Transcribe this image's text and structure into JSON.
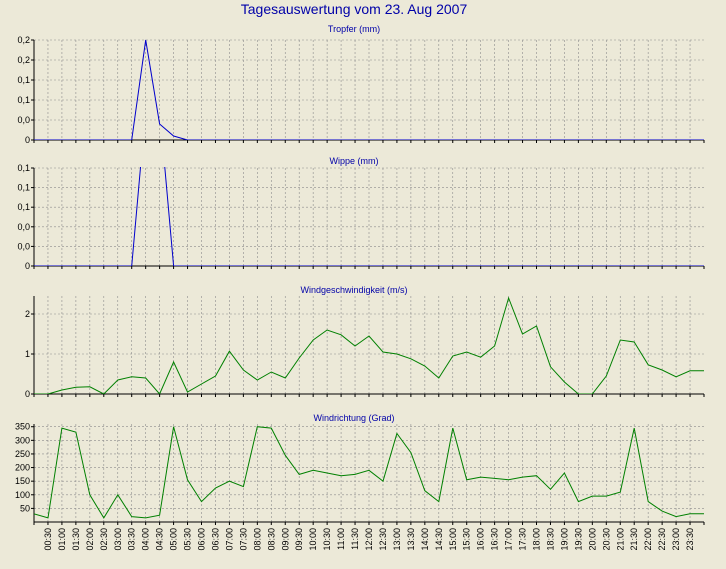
{
  "title": "Tagesauswertung vom 23. Aug 2007",
  "colors": {
    "background": "#ece9d8",
    "plot_bg": "#ece9d8",
    "grid": "#8c8c8c",
    "text_title": "#0000a8",
    "series_blue": "#0000cc",
    "series_green": "#008000"
  },
  "x_labels": [
    "00:30",
    "01:00",
    "01:30",
    "02:00",
    "02:30",
    "03:00",
    "03:30",
    "04:00",
    "04:30",
    "05:00",
    "05:30",
    "06:00",
    "06:30",
    "07:00",
    "07:30",
    "08:00",
    "08:30",
    "09:00",
    "09:30",
    "10:00",
    "10:30",
    "11:00",
    "11:30",
    "12:00",
    "12:30",
    "13:00",
    "13:30",
    "14:00",
    "14:30",
    "15:00",
    "15:30",
    "16:00",
    "16:30",
    "17:00",
    "17:30",
    "18:00",
    "18:30",
    "19:00",
    "19:30",
    "20:00",
    "20:30",
    "21:00",
    "21:30",
    "22:00",
    "22:30",
    "23:00",
    "23:30"
  ],
  "chart_data": [
    {
      "type": "line",
      "title": "Tropfer (mm)",
      "x": [
        "00:00",
        "00:30",
        "01:00",
        "01:30",
        "02:00",
        "02:30",
        "03:00",
        "03:30",
        "04:00",
        "04:30",
        "05:00",
        "05:30",
        "06:00",
        "06:30",
        "07:00",
        "07:30",
        "08:00",
        "08:30",
        "09:00",
        "09:30",
        "10:00",
        "10:30",
        "11:00",
        "11:30",
        "12:00",
        "12:30",
        "13:00",
        "13:30",
        "14:00",
        "14:30",
        "15:00",
        "15:30",
        "16:00",
        "16:30",
        "17:00",
        "17:30",
        "18:00",
        "18:30",
        "19:00",
        "19:30",
        "20:00",
        "20:30",
        "21:00",
        "21:30",
        "22:00",
        "22:30",
        "23:00",
        "23:30",
        "24:00"
      ],
      "values": [
        0,
        0,
        0,
        0,
        0,
        0,
        0,
        0,
        0.25,
        0.04,
        0.01,
        0,
        0,
        0,
        0,
        0,
        0,
        0,
        0,
        0,
        0,
        0,
        0,
        0,
        0,
        0,
        0,
        0,
        0,
        0,
        0,
        0,
        0,
        0,
        0,
        0,
        0,
        0,
        0,
        0,
        0,
        0,
        0,
        0,
        0,
        0,
        0,
        0,
        0
      ],
      "yticks": [
        0,
        0.05,
        0.1,
        0.15,
        0.2,
        0.25
      ],
      "ytick_labels": [
        "0",
        "0,0",
        "0,1",
        "0,1",
        "0,2",
        "0,2"
      ],
      "ylim": [
        0,
        0.25
      ],
      "grid": true,
      "color": "#0000cc"
    },
    {
      "type": "line",
      "title": "Wippe (mm)",
      "x": [
        "00:00",
        "00:30",
        "01:00",
        "01:30",
        "02:00",
        "02:30",
        "03:00",
        "03:30",
        "04:00",
        "04:30",
        "05:00",
        "05:30",
        "06:00",
        "06:30",
        "07:00",
        "07:30",
        "08:00",
        "08:30",
        "09:00",
        "09:30",
        "10:00",
        "10:30",
        "11:00",
        "11:30",
        "12:00",
        "12:30",
        "13:00",
        "13:30",
        "14:00",
        "14:30",
        "15:00",
        "15:30",
        "16:00",
        "16:30",
        "17:00",
        "17:30",
        "18:00",
        "18:30",
        "19:00",
        "19:30",
        "20:00",
        "20:30",
        "21:00",
        "21:30",
        "22:00",
        "22:30",
        "23:00",
        "23:30",
        "24:00"
      ],
      "values": [
        0,
        0,
        0,
        0,
        0,
        0,
        0,
        0,
        0.2,
        0.2,
        0,
        0,
        0,
        0,
        0,
        0,
        0,
        0,
        0,
        0,
        0,
        0,
        0,
        0,
        0,
        0,
        0,
        0,
        0,
        0,
        0,
        0,
        0,
        0,
        0,
        0,
        0,
        0,
        0,
        0,
        0,
        0,
        0,
        0,
        0,
        0,
        0,
        0,
        0
      ],
      "yticks": [
        0,
        0.025,
        0.05,
        0.075,
        0.1,
        0.125
      ],
      "ytick_labels": [
        "0",
        "0,0",
        "0,0",
        "0,1",
        "0,1",
        "0,1"
      ],
      "ylim": [
        0,
        0.125
      ],
      "grid": true,
      "color": "#0000cc"
    },
    {
      "type": "line",
      "title": "Windgeschwindigkeit (m/s)",
      "x": [
        "00:00",
        "00:30",
        "01:00",
        "01:30",
        "02:00",
        "02:30",
        "03:00",
        "03:30",
        "04:00",
        "04:30",
        "05:00",
        "05:30",
        "06:00",
        "06:30",
        "07:00",
        "07:30",
        "08:00",
        "08:30",
        "09:00",
        "09:30",
        "10:00",
        "10:30",
        "11:00",
        "11:30",
        "12:00",
        "12:30",
        "13:00",
        "13:30",
        "14:00",
        "14:30",
        "15:00",
        "15:30",
        "16:00",
        "16:30",
        "17:00",
        "17:30",
        "18:00",
        "18:30",
        "19:00",
        "19:30",
        "20:00",
        "20:30",
        "21:00",
        "21:30",
        "22:00",
        "22:30",
        "23:00",
        "23:30",
        "24:00"
      ],
      "values": [
        0,
        0,
        0.1,
        0.17,
        0.18,
        0,
        0.35,
        0.43,
        0.4,
        0,
        0.8,
        0.05,
        0.25,
        0.45,
        1.07,
        0.6,
        0.35,
        0.55,
        0.4,
        0.9,
        1.35,
        1.6,
        1.48,
        1.2,
        1.45,
        1.05,
        1.0,
        0.88,
        0.7,
        0.4,
        0.95,
        1.05,
        0.92,
        1.2,
        2.4,
        1.5,
        1.7,
        0.68,
        0.3,
        0,
        0,
        0.45,
        1.35,
        1.3,
        0.73,
        0.6,
        0.43,
        0.58,
        0.58
      ],
      "yticks": [
        0,
        1,
        2
      ],
      "ytick_labels": [
        "0",
        "1",
        "2"
      ],
      "ylim": [
        0,
        2.45
      ],
      "grid": true,
      "color": "#008000"
    },
    {
      "type": "line",
      "title": "Windrichtung (Grad)",
      "x": [
        "00:00",
        "00:30",
        "01:00",
        "01:30",
        "02:00",
        "02:30",
        "03:00",
        "03:30",
        "04:00",
        "04:30",
        "05:00",
        "05:30",
        "06:00",
        "06:30",
        "07:00",
        "07:30",
        "08:00",
        "08:30",
        "09:00",
        "09:30",
        "10:00",
        "10:30",
        "11:00",
        "11:30",
        "12:00",
        "12:30",
        "13:00",
        "13:30",
        "14:00",
        "14:30",
        "15:00",
        "15:30",
        "16:00",
        "16:30",
        "17:00",
        "17:30",
        "18:00",
        "18:30",
        "19:00",
        "19:30",
        "20:00",
        "20:30",
        "21:00",
        "21:30",
        "22:00",
        "22:30",
        "23:00",
        "23:30",
        "24:00"
      ],
      "values": [
        30,
        15,
        345,
        330,
        100,
        15,
        100,
        20,
        15,
        25,
        350,
        155,
        75,
        125,
        150,
        130,
        350,
        345,
        245,
        175,
        190,
        180,
        170,
        175,
        190,
        150,
        325,
        255,
        115,
        75,
        345,
        155,
        165,
        160,
        155,
        165,
        170,
        120,
        180,
        75,
        95,
        95,
        110,
        345,
        75,
        40,
        20,
        30,
        30
      ],
      "yticks": [
        50,
        100,
        150,
        200,
        250,
        300,
        350
      ],
      "ytick_labels": [
        "50",
        "100",
        "150",
        "200",
        "250",
        "300",
        "350"
      ],
      "ylim": [
        0,
        360
      ],
      "grid": true,
      "color": "#008000"
    }
  ]
}
